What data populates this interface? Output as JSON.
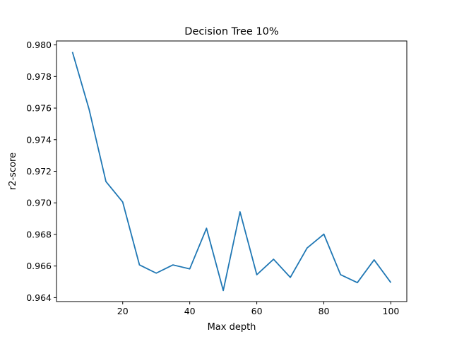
{
  "chart_data": {
    "type": "line",
    "title": "Decision Tree 10%",
    "xlabel": "Max depth",
    "ylabel": "r2-score",
    "xlim": [
      0.25,
      104.75
    ],
    "ylim": [
      0.96375,
      0.98025
    ],
    "xticks": [
      20,
      40,
      60,
      80,
      100
    ],
    "yticks": [
      0.964,
      0.966,
      0.968,
      0.97,
      0.972,
      0.974,
      0.976,
      0.978,
      0.98
    ],
    "grid": false,
    "line_color": "#1f77b4",
    "series": [
      {
        "x": [
          5,
          10,
          15,
          20,
          25,
          30,
          35,
          40,
          45,
          50,
          55,
          60,
          65,
          70,
          75,
          80,
          85,
          90,
          95,
          100
        ],
        "values": [
          0.97955,
          0.9759,
          0.97135,
          0.97005,
          0.96607,
          0.96555,
          0.96607,
          0.96582,
          0.96839,
          0.96445,
          0.96943,
          0.96545,
          0.96643,
          0.96528,
          0.96714,
          0.96802,
          0.96545,
          0.96495,
          0.96639,
          0.96495
        ]
      }
    ]
  }
}
